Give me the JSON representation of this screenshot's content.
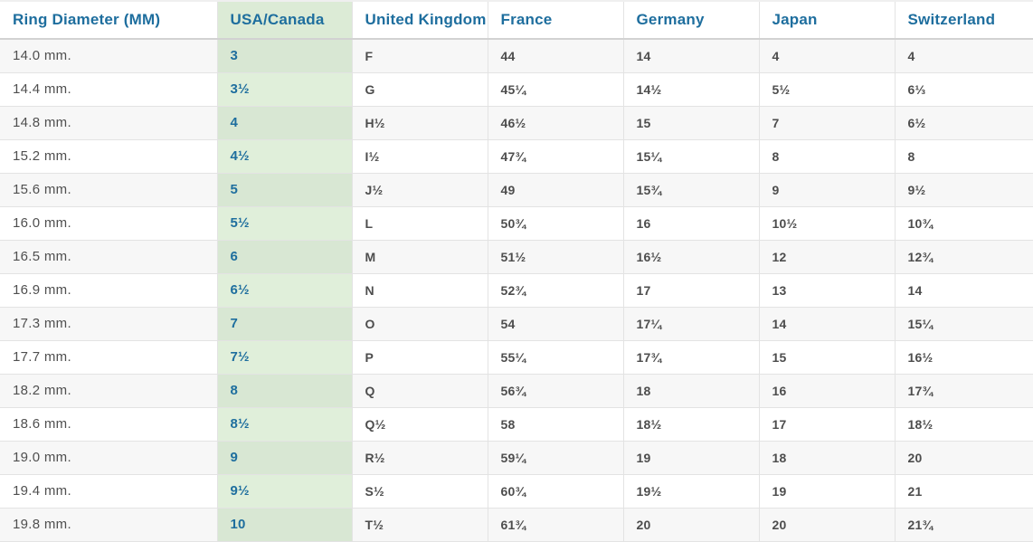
{
  "colors": {
    "header_text_blue": "#1e6e9e",
    "usa_canada_value_blue": "#1e6e9e",
    "green_header": "#dcebd6",
    "green_cell_light_row": "#e0efda",
    "green_cell_striped_row": "#d8e7d3",
    "row_stripe": "#f7f7f7",
    "body_text": "#4d4d4d",
    "cell_border": "#e3e3e3",
    "header_border": "#d2d2d2"
  },
  "table": {
    "columns": [
      {
        "key": "ring-diameter",
        "label": "Ring Diameter (MM)",
        "highlighted": false
      },
      {
        "key": "usa-canada",
        "label": "USA/Canada",
        "highlighted": true
      },
      {
        "key": "united-kingdom",
        "label": "United Kingdom",
        "highlighted": false
      },
      {
        "key": "france",
        "label": "France",
        "highlighted": false
      },
      {
        "key": "germany",
        "label": "Germany",
        "highlighted": false
      },
      {
        "key": "japan",
        "label": "Japan",
        "highlighted": false
      },
      {
        "key": "switzerland",
        "label": "Switzerland",
        "highlighted": false
      }
    ],
    "rows": [
      [
        "14.0 mm.",
        "3",
        "F",
        "44",
        "14",
        "4",
        "4"
      ],
      [
        "14.4 mm.",
        "3½",
        "G",
        "45¼",
        "14½",
        "5½",
        "6⅓"
      ],
      [
        "14.8 mm.",
        "4",
        "H½",
        "46½",
        "15",
        "7",
        "6½"
      ],
      [
        "15.2 mm.",
        "4½",
        "I½",
        "47¾",
        "15¼",
        "8",
        "8"
      ],
      [
        "15.6 mm.",
        "5",
        "J½",
        "49",
        "15¾",
        "9",
        "9½"
      ],
      [
        "16.0 mm.",
        "5½",
        "L",
        "50¾",
        "16",
        "10½",
        "10¾"
      ],
      [
        "16.5 mm.",
        "6",
        "M",
        "51½",
        "16½",
        "12",
        "12¾"
      ],
      [
        "16.9 mm.",
        "6½",
        "N",
        "52¾",
        "17",
        "13",
        "14"
      ],
      [
        "17.3 mm.",
        "7",
        "O",
        "54",
        "17¼",
        "14",
        "15¼"
      ],
      [
        "17.7 mm.",
        "7½",
        "P",
        "55¼",
        "17¾",
        "15",
        "16½"
      ],
      [
        "18.2 mm.",
        "8",
        "Q",
        "56¾",
        "18",
        "16",
        "17¾"
      ],
      [
        "18.6 mm.",
        "8½",
        "Q½",
        "58",
        "18½",
        "17",
        "18½"
      ],
      [
        "19.0 mm.",
        "9",
        "R½",
        "59¼",
        "19",
        "18",
        "20"
      ],
      [
        "19.4 mm.",
        "9½",
        "S½",
        "60¾",
        "19½",
        "19",
        "21"
      ],
      [
        "19.8 mm.",
        "10",
        "T½",
        "61¾",
        "20",
        "20",
        "21¾"
      ]
    ]
  }
}
